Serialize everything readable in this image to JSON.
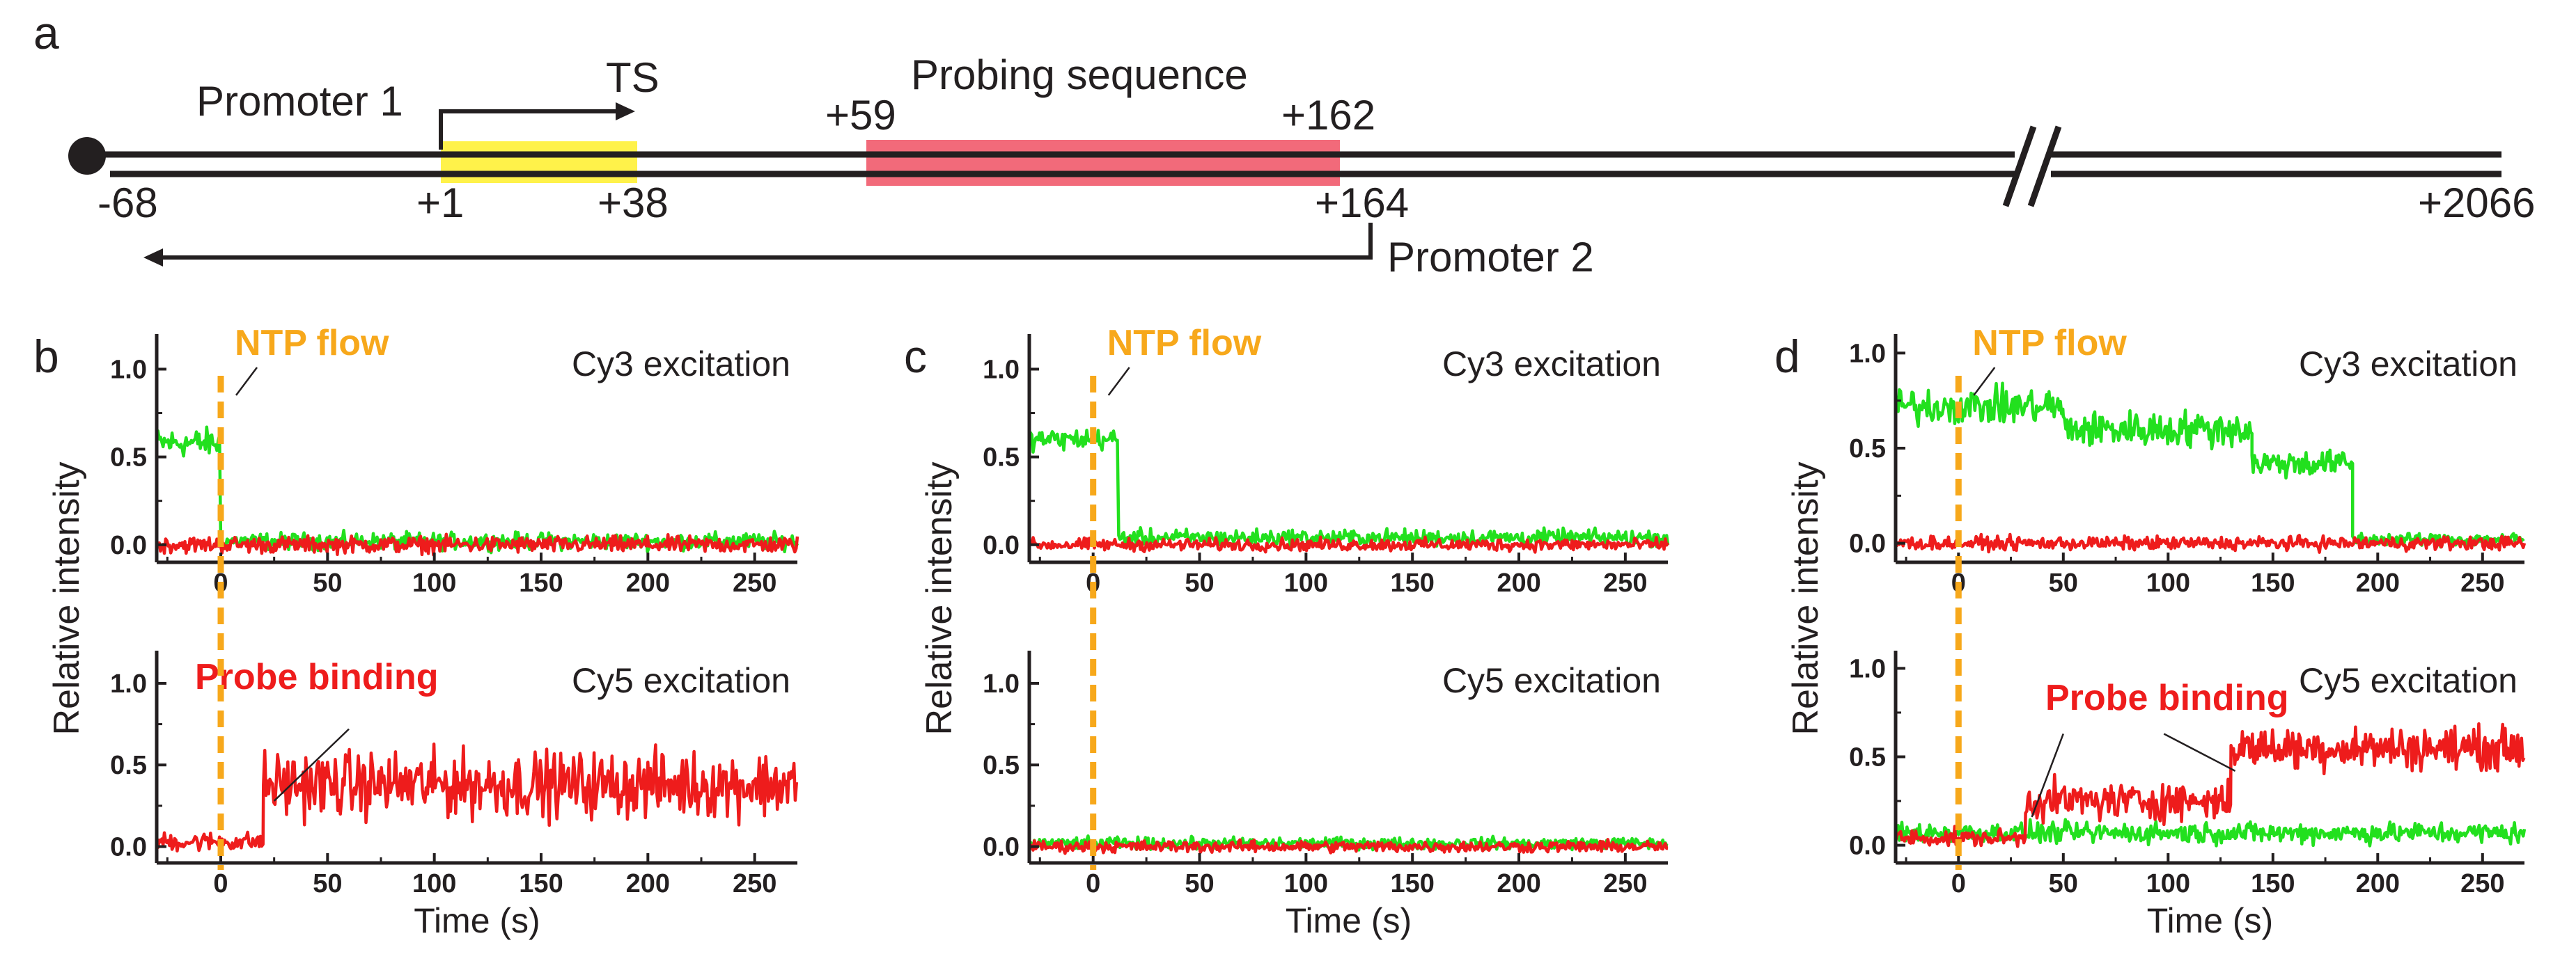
{
  "panel_a": {
    "label": "a",
    "promoter1": "Promoter 1",
    "ts": "TS",
    "probing_sequence": "Probing sequence",
    "pos_plus59": "+59",
    "pos_plus162": "+162",
    "pos_minus68": "-68",
    "pos_plus1": "+1",
    "pos_plus38": "+38",
    "pos_plus164": "+164",
    "pos_plus2066": "+2066",
    "promoter2": "Promoter 2",
    "colors": {
      "dna": "#231f20",
      "ts_box": "#fff24a",
      "probe_box": "#f26a7a"
    }
  },
  "colors": {
    "green": "#22e01e",
    "red": "#ee1c1c",
    "orange": "#f7a81b"
  },
  "chart_data": [
    {
      "panel": "b",
      "type": "line",
      "ylabel": "Relative intensity",
      "xlabel": "Time (s)",
      "annotation_ntp": "NTP flow",
      "top": {
        "title": "Cy3 excitation",
        "xlim": [
          -30,
          270
        ],
        "ylim": [
          -0.1,
          1.2
        ],
        "xticks": [
          "0",
          "50",
          "100",
          "150",
          "200",
          "250"
        ],
        "yticks": [
          "0.0",
          "0.5",
          "1.0"
        ],
        "series": [
          {
            "name": "green",
            "segments": [
              [
                -30,
                0,
                0.58,
                0.07
              ],
              [
                0,
                270,
                0.02,
                0.04
              ]
            ]
          },
          {
            "name": "red",
            "segments": [
              [
                -30,
                270,
                0.0,
                0.04
              ]
            ]
          }
        ]
      },
      "bottom": {
        "title": "Cy5 excitation",
        "xlim": [
          -30,
          270
        ],
        "ylim": [
          -0.1,
          1.2
        ],
        "xticks": [
          "0",
          "50",
          "100",
          "150",
          "200",
          "250"
        ],
        "yticks": [
          "0.0",
          "0.5",
          "1.0"
        ],
        "annotation_probe": "Probe binding",
        "series": [
          {
            "name": "red",
            "segments": [
              [
                -30,
                20,
                0.03,
                0.05
              ],
              [
                20,
                270,
                0.38,
                0.17
              ]
            ]
          }
        ]
      }
    },
    {
      "panel": "c",
      "type": "line",
      "ylabel": "Relative intensity",
      "xlabel": "Time (s)",
      "annotation_ntp": "NTP flow",
      "top": {
        "title": "Cy3 excitation",
        "xlim": [
          -30,
          270
        ],
        "ylim": [
          -0.1,
          1.2
        ],
        "xticks": [
          "0",
          "50",
          "100",
          "150",
          "200",
          "250"
        ],
        "yticks": [
          "0.0",
          "0.5",
          "1.0"
        ],
        "series": [
          {
            "name": "green",
            "segments": [
              [
                -30,
                12,
                0.6,
                0.05
              ],
              [
                12,
                270,
                0.04,
                0.04
              ]
            ]
          },
          {
            "name": "red",
            "segments": [
              [
                -30,
                270,
                0.0,
                0.03
              ]
            ]
          }
        ]
      },
      "bottom": {
        "title": "Cy5 excitation",
        "xlim": [
          -30,
          270
        ],
        "ylim": [
          -0.1,
          1.2
        ],
        "xticks": [
          "0",
          "50",
          "100",
          "150",
          "200",
          "250"
        ],
        "yticks": [
          "0.0",
          "0.5",
          "1.0"
        ],
        "series": [
          {
            "name": "green",
            "segments": [
              [
                -30,
                270,
                0.02,
                0.03
              ]
            ]
          },
          {
            "name": "red",
            "segments": [
              [
                -30,
                270,
                0.0,
                0.03
              ]
            ]
          }
        ]
      }
    },
    {
      "panel": "d",
      "type": "line",
      "ylabel": "Relative intensity",
      "xlabel": "Time (s)",
      "annotation_ntp": "NTP flow",
      "top": {
        "title": "Cy3 excitation",
        "xlim": [
          -30,
          270
        ],
        "ylim": [
          -0.1,
          1.1
        ],
        "xticks": [
          "0",
          "50",
          "100",
          "150",
          "200",
          "250"
        ],
        "yticks": [
          "0.0",
          "0.5",
          "1.0"
        ],
        "series": [
          {
            "name": "green",
            "segments": [
              [
                -30,
                50,
                0.72,
                0.08
              ],
              [
                50,
                140,
                0.6,
                0.08
              ],
              [
                140,
                188,
                0.42,
                0.06
              ],
              [
                188,
                270,
                0.02,
                0.03
              ]
            ]
          },
          {
            "name": "red",
            "segments": [
              [
                -30,
                270,
                0.0,
                0.03
              ]
            ]
          }
        ]
      },
      "bottom": {
        "title": "Cy5 excitation",
        "xlim": [
          -30,
          270
        ],
        "ylim": [
          -0.1,
          1.1
        ],
        "xticks": [
          "0",
          "50",
          "100",
          "150",
          "200",
          "250"
        ],
        "yticks": [
          "0.0",
          "0.5",
          "1.0"
        ],
        "annotation_probe": "Probe binding",
        "series": [
          {
            "name": "green",
            "segments": [
              [
                -30,
                270,
                0.07,
                0.05
              ]
            ]
          },
          {
            "name": "red",
            "segments": [
              [
                -30,
                32,
                0.04,
                0.04
              ],
              [
                32,
                130,
                0.25,
                0.09
              ],
              [
                130,
                270,
                0.55,
                0.1
              ]
            ]
          }
        ]
      }
    }
  ]
}
